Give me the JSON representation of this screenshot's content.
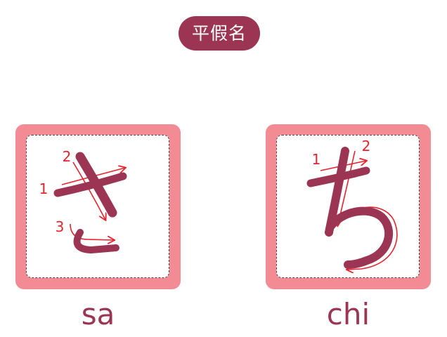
{
  "badge": {
    "label": "平假名"
  },
  "colors": {
    "accent": "#9b3553",
    "card_frame": "#f38b95",
    "stroke_order": "#e8232e"
  },
  "cards": [
    {
      "kana": "さ",
      "romaji": "sa",
      "stroke_numbers": [
        "1",
        "2",
        "3"
      ]
    },
    {
      "kana": "ち",
      "romaji": "chi",
      "stroke_numbers": [
        "1",
        "2"
      ]
    }
  ]
}
